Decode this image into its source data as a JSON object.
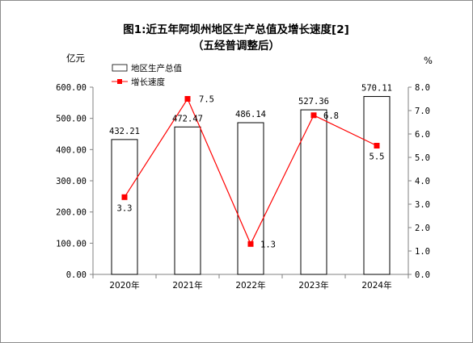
{
  "chart_data": {
    "type": "bar",
    "title_line1": "图1:近五年阿坝州地区生产总值及增长速度[2]",
    "title_line2": "（五经普调整后）",
    "y_left_unit": "亿元",
    "y_right_unit": "%",
    "categories": [
      "2020年",
      "2021年",
      "2022年",
      "2023年",
      "2024年"
    ],
    "series": [
      {
        "name": "地区生产总值",
        "kind": "bar",
        "axis": "left",
        "values": [
          432.21,
          472.47,
          486.14,
          527.36,
          570.11
        ],
        "labels": [
          "432.21",
          "472.47",
          "486.14",
          "527.36",
          "570.11"
        ]
      },
      {
        "name": "增长速度",
        "kind": "line",
        "axis": "right",
        "values": [
          3.3,
          7.5,
          1.3,
          6.8,
          5.5
        ],
        "labels": [
          "3.3",
          "7.5",
          "1.3",
          "6.8",
          "5.5"
        ]
      }
    ],
    "y_left_ticks": [
      "0.00",
      "100.00",
      "200.00",
      "300.00",
      "400.00",
      "500.00",
      "600.00"
    ],
    "y_right_ticks": [
      "0.0",
      "1.0",
      "2.0",
      "3.0",
      "4.0",
      "5.0",
      "6.0",
      "7.0",
      "8.0"
    ],
    "ylim_left": [
      0,
      600
    ],
    "ylim_right": [
      0,
      8
    ],
    "legend_position": "top-left",
    "grid": false,
    "colors": {
      "bar_fill": "#ffffff",
      "bar_stroke": "#000000",
      "line": "#ff0000",
      "marker": "#ff0000"
    }
  }
}
